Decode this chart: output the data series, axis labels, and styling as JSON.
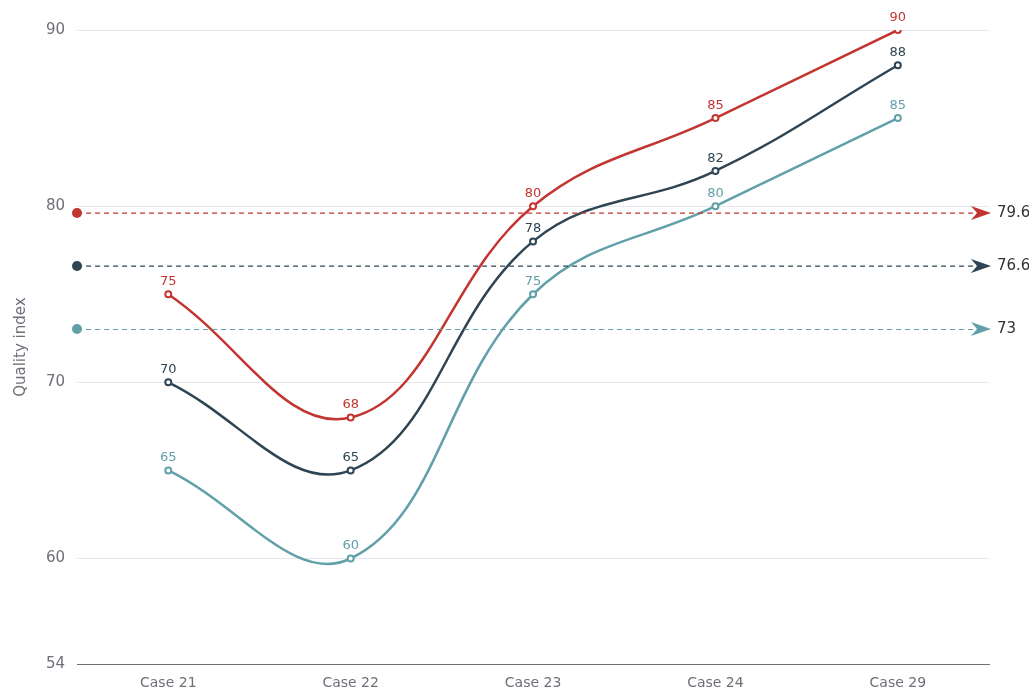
{
  "chart_data": {
    "type": "line",
    "ylabel": "Quality index",
    "categories": [
      "Case 21",
      "Case 22",
      "Case 23",
      "Case 24",
      "Case 29"
    ],
    "series": [
      {
        "color": "#c23531",
        "values": [
          75,
          68,
          80,
          85,
          90
        ]
      },
      {
        "color": "#2f4554",
        "values": [
          70,
          65,
          78,
          82,
          88
        ]
      },
      {
        "color": "#61a0a8",
        "values": [
          65,
          60,
          75,
          80,
          85
        ]
      }
    ],
    "ylim": [
      54,
      90
    ],
    "yticks": [
      54,
      60,
      70,
      80,
      90
    ],
    "ref_lines": [
      {
        "axis": "y",
        "value": 79.6,
        "label": "79.6",
        "color": "#c23531",
        "line_style": "dashed"
      },
      {
        "axis": "y",
        "value": 76.6,
        "label": "76.6",
        "color": "#2f4554",
        "line_style": "dashed"
      },
      {
        "axis": "y",
        "value": 73,
        "label": "73",
        "color": "#61a0a8",
        "line_style": "dashed"
      }
    ],
    "data_labels": true,
    "grid": "y",
    "legend": false,
    "marker": "circle",
    "line_style": "solid"
  }
}
